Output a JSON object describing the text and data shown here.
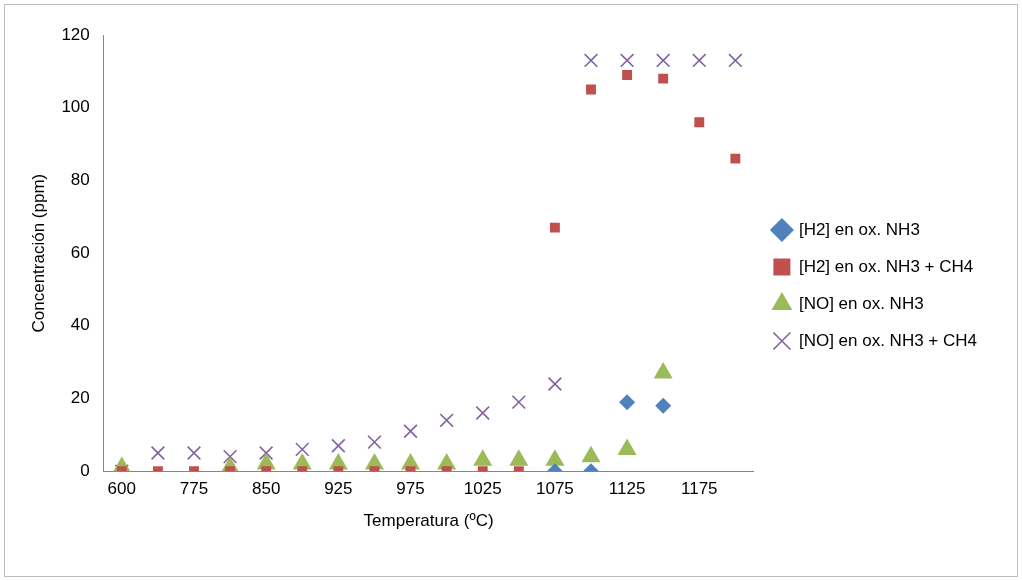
{
  "chart_data": {
    "type": "scatter",
    "xlabel": "Temperatura (ºC)",
    "ylabel": "Concentración (ppm)",
    "categories": [
      "600",
      null,
      "775",
      null,
      "850",
      null,
      "925",
      null,
      "975",
      null,
      "1025",
      null,
      "1075",
      null,
      "1125",
      null,
      "1175",
      null
    ],
    "ylim": [
      0,
      120
    ],
    "yticks": [
      0,
      20,
      40,
      60,
      80,
      100,
      120
    ],
    "grid": false,
    "legend": "right",
    "series": [
      {
        "name": "[H2] en ox. NH3",
        "color": "#4f81bd",
        "marker": "diamond",
        "values": [
          null,
          null,
          null,
          null,
          null,
          null,
          null,
          null,
          null,
          null,
          null,
          null,
          0,
          0,
          19,
          18,
          null,
          null
        ]
      },
      {
        "name": "[H2] en ox. NH3 + CH4",
        "color": "#c0504d",
        "marker": "square",
        "values": [
          0,
          0,
          0,
          0,
          0,
          0,
          0,
          0,
          0,
          0,
          0,
          0,
          67,
          105,
          109,
          108,
          96,
          86
        ]
      },
      {
        "name": "[NO] en ox. NH3",
        "color": "#9bbb59",
        "marker": "triangle",
        "values": [
          1,
          null,
          null,
          1,
          2,
          2,
          2,
          2,
          2,
          2,
          3,
          3,
          3,
          4,
          6,
          27,
          null,
          null
        ]
      },
      {
        "name": "[NO] en ox. NH3 + CH4",
        "color": "#8064a2",
        "marker": "cross",
        "values": [
          0,
          5,
          5,
          4,
          5,
          6,
          7,
          8,
          11,
          14,
          16,
          19,
          24,
          113,
          113,
          113,
          113,
          113
        ]
      }
    ]
  }
}
